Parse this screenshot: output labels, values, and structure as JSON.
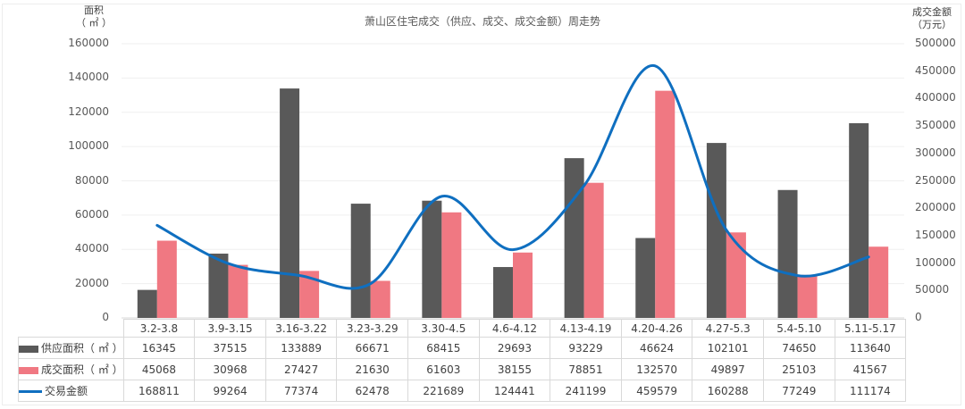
{
  "chart_data": {
    "type": "bar+line",
    "title": "萧山区住宅成交（供应、成交、成交金额）周走势",
    "ylabel_left": "面积\n（㎡）",
    "ylabel_left_line1": "面积",
    "ylabel_left_line2": "（ ㎡ ）",
    "ylabel_right_line1": "成交金额",
    "ylabel_right_line2": "（万元）",
    "ylim_left": [
      0,
      160000
    ],
    "ylim_right": [
      0,
      500000
    ],
    "yticks_left": [
      "160000",
      "140000",
      "120000",
      "100000",
      "80000",
      "60000",
      "40000",
      "20000",
      "0"
    ],
    "yticks_right": [
      "500000",
      "450000",
      "400000",
      "350000",
      "300000",
      "250000",
      "200000",
      "150000",
      "100000",
      "50000",
      "0"
    ],
    "categories": [
      "3.2-3.8",
      "3.9-3.15",
      "3.16-3.22",
      "3.23-3.29",
      "3.30-4.5",
      "4.6-4.12",
      "4.13-4.19",
      "4.20-4.26",
      "4.27-5.3",
      "5.4-5.10",
      "5.11-5.17"
    ],
    "series": [
      {
        "name": "供应面积（㎡）",
        "type": "bar",
        "axis": "left",
        "color": "#595959",
        "values": [
          16345,
          37515,
          133889,
          66671,
          68415,
          29693,
          93229,
          46624,
          102101,
          74650,
          113640
        ]
      },
      {
        "name": "成交面积（㎡）",
        "type": "bar",
        "axis": "left",
        "color": "#f07882",
        "values": [
          45068,
          30968,
          27427,
          21630,
          61603,
          38155,
          78851,
          132570,
          49897,
          25103,
          41567
        ]
      },
      {
        "name": "交易金额",
        "type": "line",
        "axis": "right",
        "color": "#0f6fc0",
        "smooth": true,
        "values": [
          168811,
          99264,
          77374,
          62478,
          221689,
          124441,
          241199,
          459579,
          160288,
          77249,
          111174
        ]
      }
    ],
    "grid": true,
    "legend_position": "data-table"
  },
  "table": {
    "rows": [
      {
        "label": "供应面积（ ㎡ ）",
        "swatch": "bar",
        "color": "#595959",
        "cells": [
          "16345",
          "37515",
          "133889",
          "66671",
          "68415",
          "29693",
          "93229",
          "46624",
          "102101",
          "74650",
          "113640"
        ]
      },
      {
        "label": "成交面积（ ㎡ ）",
        "swatch": "bar",
        "color": "#f07882",
        "cells": [
          "45068",
          "30968",
          "27427",
          "21630",
          "61603",
          "38155",
          "78851",
          "132570",
          "49897",
          "25103",
          "41567"
        ]
      },
      {
        "label": "交易金额",
        "swatch": "line",
        "color": "#0f6fc0",
        "cells": [
          "168811",
          "99264",
          "77374",
          "62478",
          "221689",
          "124441",
          "241199",
          "459579",
          "160288",
          "77249",
          "111174"
        ]
      }
    ]
  }
}
